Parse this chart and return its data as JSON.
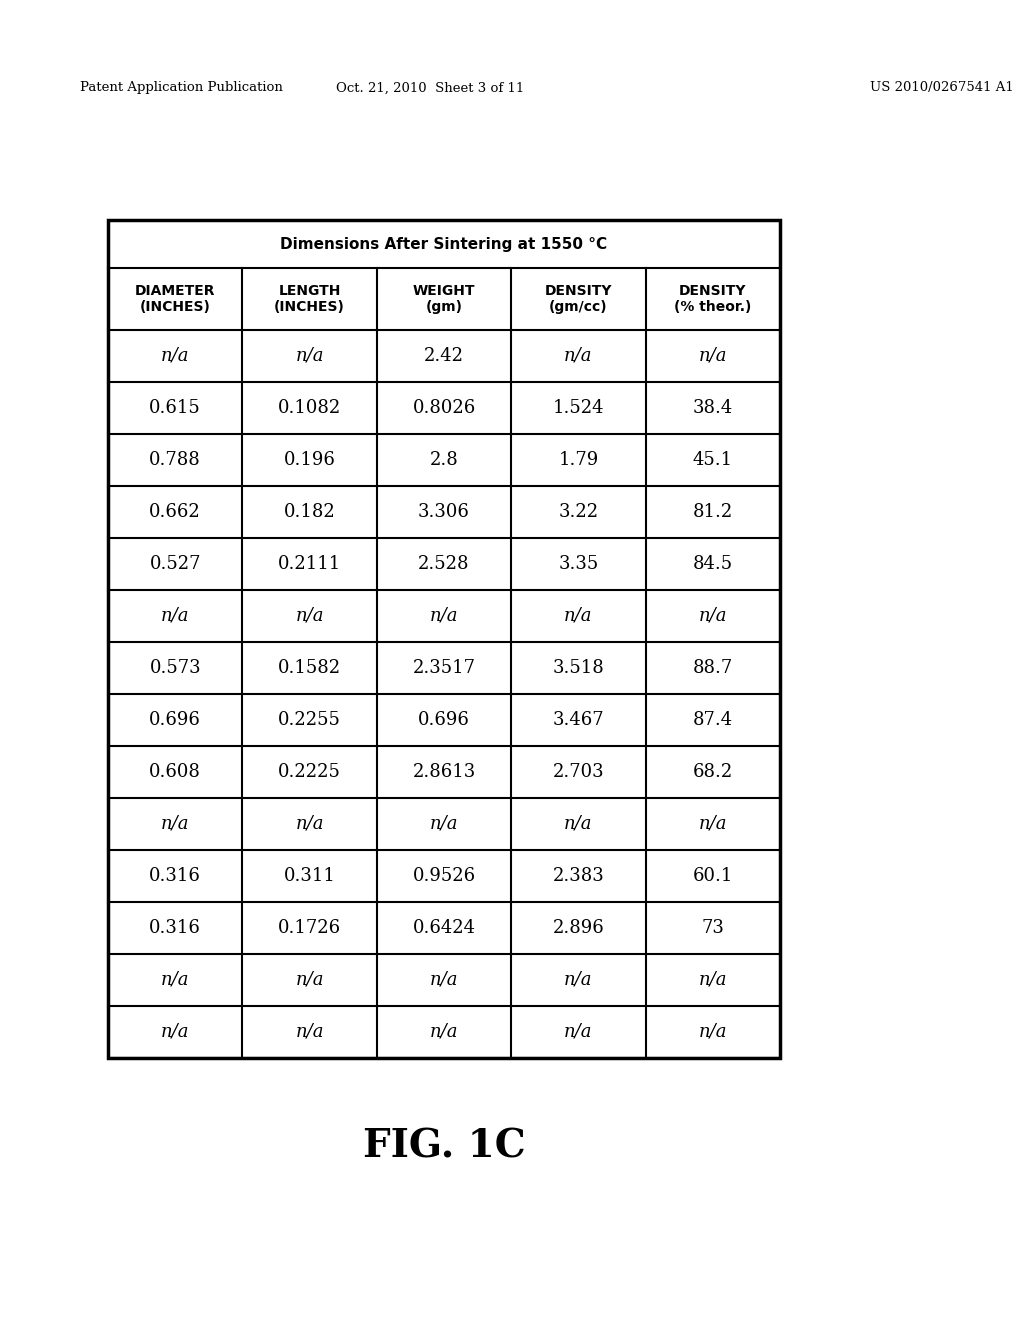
{
  "header_row1": "Dimensions After Sintering at 1550 °C",
  "header_row2": [
    "DIAMETER\n(INCHES)",
    "LENGTH\n(INCHES)",
    "WEIGHT\n(gm)",
    "DENSITY\n(gm/cc)",
    "DENSITY\n(% theor.)"
  ],
  "rows": [
    [
      "n/a",
      "n/a",
      "2.42",
      "n/a",
      "n/a"
    ],
    [
      "0.615",
      "0.1082",
      "0.8026",
      "1.524",
      "38.4"
    ],
    [
      "0.788",
      "0.196",
      "2.8",
      "1.79",
      "45.1"
    ],
    [
      "0.662",
      "0.182",
      "3.306",
      "3.22",
      "81.2"
    ],
    [
      "0.527",
      "0.2111",
      "2.528",
      "3.35",
      "84.5"
    ],
    [
      "n/a",
      "n/a",
      "n/a",
      "n/a",
      "n/a"
    ],
    [
      "0.573",
      "0.1582",
      "2.3517",
      "3.518",
      "88.7"
    ],
    [
      "0.696",
      "0.2255",
      "0.696",
      "3.467",
      "87.4"
    ],
    [
      "0.608",
      "0.2225",
      "2.8613",
      "2.703",
      "68.2"
    ],
    [
      "n/a",
      "n/a",
      "n/a",
      "n/a",
      "n/a"
    ],
    [
      "0.316",
      "0.311",
      "0.9526",
      "2.383",
      "60.1"
    ],
    [
      "0.316",
      "0.1726",
      "0.6424",
      "2.896",
      "73"
    ],
    [
      "n/a",
      "n/a",
      "n/a",
      "n/a",
      "n/a"
    ],
    [
      "n/a",
      "n/a",
      "n/a",
      "n/a",
      "n/a"
    ]
  ],
  "patent_left": "Patent Application Publication",
  "patent_mid": "Oct. 21, 2010  Sheet 3 of 11",
  "patent_right": "US 2010/0267541 A1",
  "figure_label": "FIG. 1C",
  "bg_color": "#ffffff",
  "text_color": "#000000"
}
